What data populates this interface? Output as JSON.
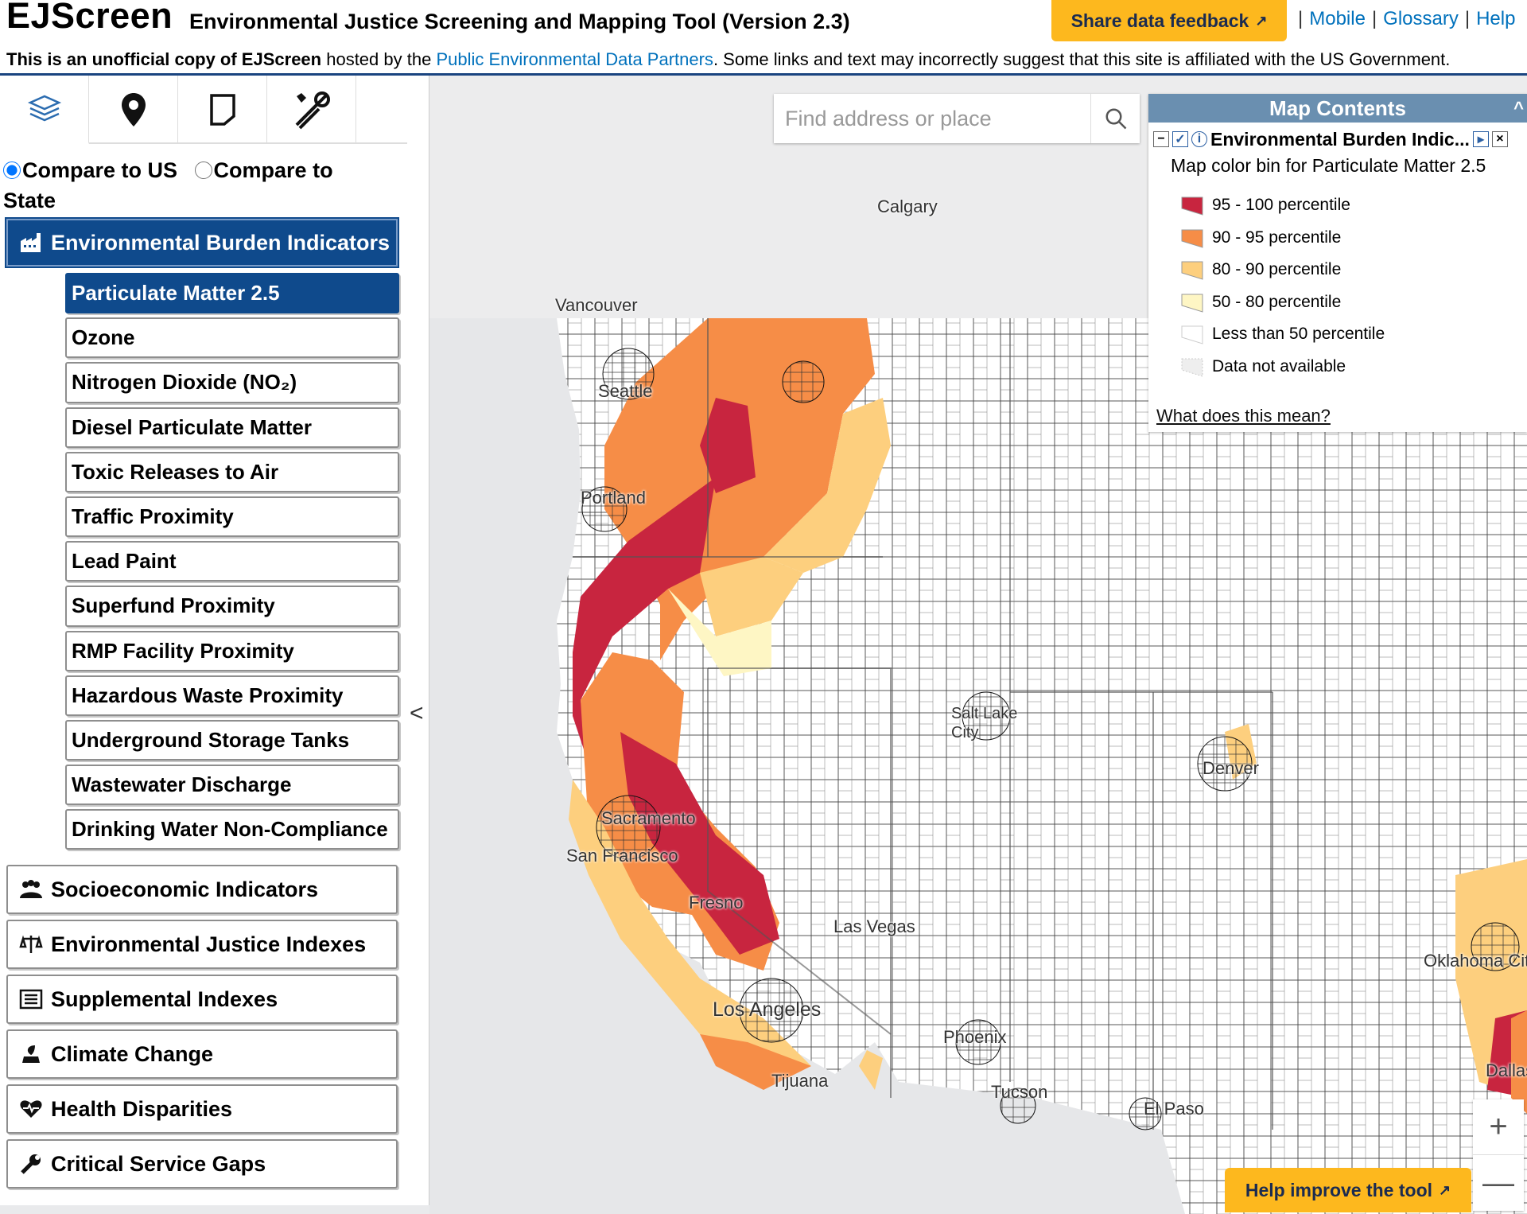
{
  "header": {
    "app_name": "EJScreen",
    "subtitle": "Environmental Justice Screening and Mapping Tool (Version 2.3)",
    "feedback_button": "Share data feedback",
    "links": [
      "Mobile",
      "Glossary",
      "Help"
    ],
    "disclaimer_bold": "This is an unofficial copy of EJScreen",
    "disclaimer_mid": " hosted by the ",
    "disclaimer_link": "Public Environmental Data Partners",
    "disclaimer_tail": ". Some links and text may incorrectly suggest that this site is affiliated with the US Government."
  },
  "sidebar": {
    "tool_tabs": [
      "layers-icon",
      "location-pin-icon",
      "note-icon",
      "tools-icon"
    ],
    "compare_us": "Compare to US",
    "compare_state": "Compare to State",
    "main_category": "Environmental Burden Indicators",
    "indicators": [
      "Particulate Matter 2.5",
      "Ozone",
      "Nitrogen Dioxide (NO₂)",
      "Diesel Particulate Matter",
      "Toxic Releases to Air",
      "Traffic Proximity",
      "Lead Paint",
      "Superfund Proximity",
      "RMP Facility Proximity",
      "Hazardous Waste Proximity",
      "Underground Storage Tanks",
      "Wastewater Discharge",
      "Drinking Water Non-Compliance"
    ],
    "categories": [
      "Socioeconomic Indicators",
      "Environmental Justice Indexes",
      "Supplemental Indexes",
      "Climate Change",
      "Health Disparities",
      "Critical Service Gaps"
    ],
    "collapse": "<"
  },
  "search": {
    "placeholder": "Find address or place"
  },
  "map_contents": {
    "title": "Map Contents",
    "layer": "Environmental Burden Indic...",
    "subtitle": "Map color bin for Particulate Matter 2.5",
    "legend": [
      {
        "label": "95 - 100 percentile",
        "color": "#c8253f"
      },
      {
        "label": "90 - 95 percentile",
        "color": "#f68d47"
      },
      {
        "label": "80 - 90 percentile",
        "color": "#fdcf7e"
      },
      {
        "label": "50 - 80 percentile",
        "color": "#fef6c4"
      },
      {
        "label": "Less than 50 percentile",
        "color": "#ffffff"
      },
      {
        "label": "Data not available",
        "color": "#eeeeee"
      }
    ],
    "link": "What does this mean?"
  },
  "cities": [
    "Calgary",
    "Vancouver",
    "Seattle",
    "Portland",
    "Salt Lake City",
    "Denver",
    "Sacramento",
    "San Francisco",
    "Fresno",
    "Las Vegas",
    "Los Angeles",
    "Tijuana",
    "Phoenix",
    "Tucson",
    "El Paso",
    "Oklahoma City",
    "Dallas"
  ],
  "help_button": "Help improve the tool",
  "zoom": {
    "in": "+",
    "out": "—"
  }
}
